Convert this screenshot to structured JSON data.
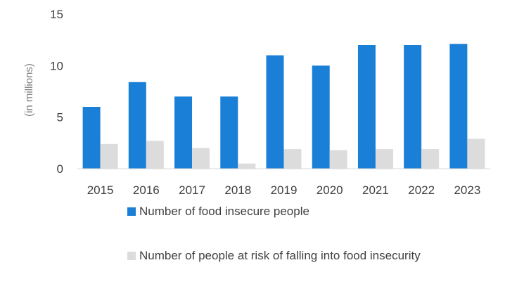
{
  "chart_data": {
    "type": "bar",
    "categories": [
      "2015",
      "2016",
      "2017",
      "2018",
      "2019",
      "2020",
      "2021",
      "2022",
      "2023"
    ],
    "series": [
      {
        "name": "Number of food insecure people",
        "color": "#1a7fd6",
        "values": [
          6.0,
          8.4,
          7.0,
          7.0,
          11.0,
          10.0,
          12.0,
          12.0,
          12.1
        ]
      },
      {
        "name": "Number of people at risk of  falling into food insecurity",
        "color": "#dcdcdc",
        "values": [
          2.4,
          2.7,
          2.0,
          0.5,
          1.9,
          1.8,
          1.9,
          1.9,
          2.9
        ]
      }
    ],
    "ylabel": "(in millions)",
    "ylim": [
      0,
      15
    ],
    "yticks": [
      "0",
      "5",
      "10",
      "15"
    ],
    "grid": false,
    "legend_position": "bottom"
  }
}
